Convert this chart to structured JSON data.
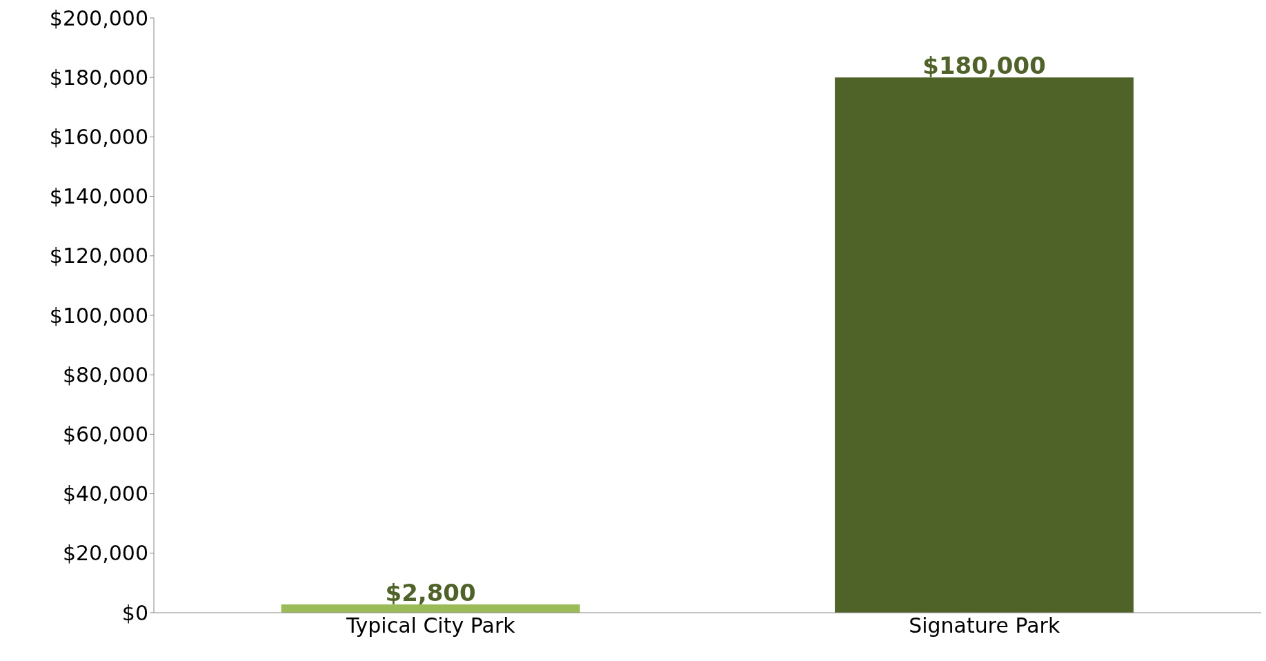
{
  "chart_data": {
    "type": "bar",
    "categories": [
      "Typical City Park",
      "Signature Park"
    ],
    "values": [
      2800,
      180000
    ],
    "colors": [
      "#9bbb59",
      "#4f6228"
    ],
    "value_labels": [
      "$2,800",
      "$180,000"
    ],
    "ylim": [
      0,
      200000
    ],
    "yticks": [
      {
        "value": 0,
        "label": "$0"
      },
      {
        "value": 20000,
        "label": "$20,000"
      },
      {
        "value": 40000,
        "label": "$40,000"
      },
      {
        "value": 60000,
        "label": "$60,000"
      },
      {
        "value": 80000,
        "label": "$80,000"
      },
      {
        "value": 100000,
        "label": "$100,000"
      },
      {
        "value": 120000,
        "label": "$120,000"
      },
      {
        "value": 140000,
        "label": "$140,000"
      },
      {
        "value": 160000,
        "label": "$160,000"
      },
      {
        "value": 180000,
        "label": "$180,000"
      },
      {
        "value": 200000,
        "label": "$200,000"
      }
    ],
    "grid": false,
    "legend": false
  }
}
